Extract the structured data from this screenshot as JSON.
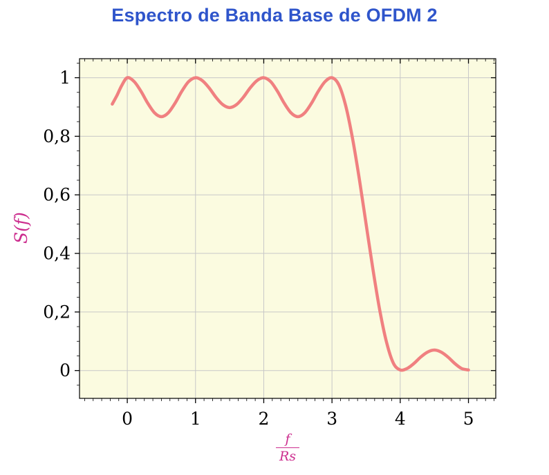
{
  "chart_data": {
    "type": "line",
    "title": "Espectro de Banda Base de OFDM 2",
    "ylabel": "S(f)",
    "xlabel": {
      "numerator": "f",
      "denominator": "Rs"
    },
    "xlim": [
      -0.7,
      5.4
    ],
    "ylim": [
      -0.095,
      1.065
    ],
    "x_ticks": [
      0,
      1,
      2,
      3,
      4,
      5
    ],
    "x_tick_labels": [
      "0",
      "1",
      "2",
      "3",
      "4",
      "5"
    ],
    "x_minor_step": 0.125,
    "y_ticks": [
      0,
      0.2,
      0.4,
      0.6,
      0.8,
      1
    ],
    "y_tick_labels": [
      "0",
      "0,2",
      "0,4",
      "0,6",
      "0,8",
      "1"
    ],
    "y_minor_step": 0.05,
    "grid": true,
    "legend": "none",
    "colors": {
      "title": "#2f55cb",
      "axis_labels": "#cc2d8e",
      "curve": "#f08080",
      "plot_background": "#fbfbe0",
      "grid": "#c7c7c7",
      "frame": "#000000",
      "tick_labels": "#000000",
      "page_background": "#ffffff"
    },
    "series": [
      {
        "name": "S(f)",
        "points": [
          [
            -0.22,
            0.91
          ],
          [
            -0.15,
            0.94
          ],
          [
            -0.08,
            0.974
          ],
          [
            0,
            1.0
          ],
          [
            0.1,
            0.987
          ],
          [
            0.2,
            0.954
          ],
          [
            0.3,
            0.913
          ],
          [
            0.4,
            0.88
          ],
          [
            0.5,
            0.867
          ],
          [
            0.6,
            0.88
          ],
          [
            0.7,
            0.913
          ],
          [
            0.8,
            0.954
          ],
          [
            0.9,
            0.987
          ],
          [
            1,
            1.0
          ],
          [
            1.1,
            0.99
          ],
          [
            1.2,
            0.965
          ],
          [
            1.3,
            0.933
          ],
          [
            1.4,
            0.908
          ],
          [
            1.5,
            0.898
          ],
          [
            1.6,
            0.908
          ],
          [
            1.7,
            0.933
          ],
          [
            1.8,
            0.965
          ],
          [
            1.9,
            0.99
          ],
          [
            2,
            1.0
          ],
          [
            2.1,
            0.987
          ],
          [
            2.2,
            0.954
          ],
          [
            2.3,
            0.913
          ],
          [
            2.4,
            0.88
          ],
          [
            2.5,
            0.867
          ],
          [
            2.6,
            0.88
          ],
          [
            2.7,
            0.913
          ],
          [
            2.8,
            0.954
          ],
          [
            2.9,
            0.987
          ],
          [
            3,
            1.0
          ],
          [
            3.1,
            0.976
          ],
          [
            3.2,
            0.905
          ],
          [
            3.3,
            0.794
          ],
          [
            3.4,
            0.655
          ],
          [
            3.5,
            0.5
          ],
          [
            3.6,
            0.346
          ],
          [
            3.7,
            0.206
          ],
          [
            3.8,
            0.096
          ],
          [
            3.9,
            0.025
          ],
          [
            4,
            0.002
          ],
          [
            4.1,
            0.007
          ],
          [
            4.2,
            0.024
          ],
          [
            4.3,
            0.046
          ],
          [
            4.4,
            0.063
          ],
          [
            4.5,
            0.07
          ],
          [
            4.6,
            0.063
          ],
          [
            4.7,
            0.046
          ],
          [
            4.8,
            0.024
          ],
          [
            4.9,
            0.007
          ],
          [
            5,
            0.002
          ]
        ]
      }
    ]
  }
}
